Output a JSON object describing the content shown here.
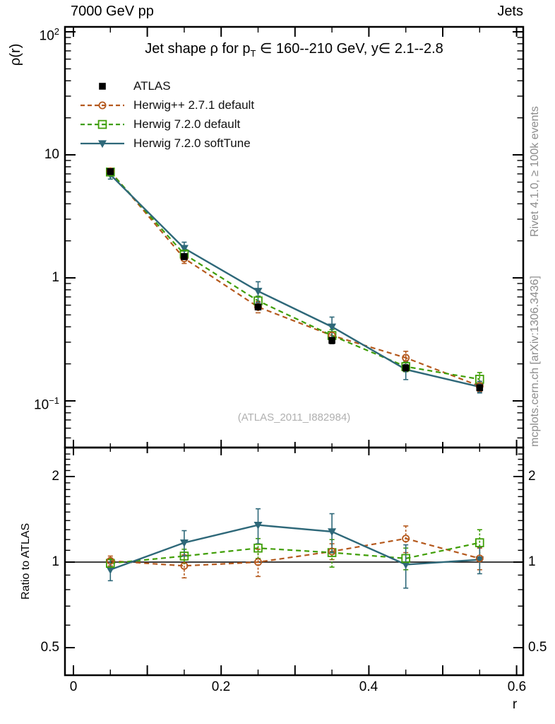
{
  "header": {
    "left": "7000 GeV pp",
    "right": "Jets"
  },
  "main_panel": {
    "ylabel": "ρ(r)",
    "title_parts": {
      "pre": "Jet shape ρ for p",
      "sub": "T",
      "post": " ∈ 160--210 GeV, y∈ 2.1--2.8"
    },
    "watermark": "(ATLAS_2011_I882984)",
    "yticks": [
      {
        "base": "10",
        "exp": "2",
        "value": 100
      },
      {
        "base": "10",
        "exp": "",
        "value": 10
      },
      {
        "base": "1",
        "exp": "",
        "value": 1
      },
      {
        "base": "10",
        "exp": "−1",
        "value": 0.1
      }
    ]
  },
  "ratio_panel": {
    "ylabel": "Ratio to ATLAS",
    "yticks": [
      {
        "label": "2",
        "value": 2
      },
      {
        "label": "1",
        "value": 1
      },
      {
        "label": "0.5",
        "value": 0.5
      }
    ]
  },
  "x_axis": {
    "label": "r",
    "ticks": [
      {
        "label": "0",
        "value": 0
      },
      {
        "label": "0.2",
        "value": 0.2
      },
      {
        "label": "0.4",
        "value": 0.4
      },
      {
        "label": "0.6",
        "value": 0.6
      }
    ]
  },
  "side_notes": {
    "right_top": "Rivet 4.1.0, ≥ 100k events",
    "right_bottom": "mcplots.cern.ch [arXiv:1306.3436]"
  },
  "colors": {
    "atlas": "#000000",
    "herwigpp": "#b5591d",
    "herwig7": "#3f9e06",
    "herwig7soft": "#2e6879",
    "frame": "#000000",
    "gray_text": "#8c8c8c",
    "watermark": "#b0b0b0"
  },
  "chart_data": {
    "type": "line",
    "x": [
      0.05,
      0.15,
      0.25,
      0.35,
      0.45,
      0.55
    ],
    "xlabel": "r",
    "xlim": [
      0,
      0.6
    ],
    "main": {
      "ylabel": "ρ(r)",
      "yscale": "log",
      "ylim": [
        0.042,
        110
      ]
    },
    "ratio": {
      "ylabel": "Ratio to ATLAS",
      "yscale": "log",
      "ylim": [
        0.4,
        2.53
      ],
      "reference": 1
    },
    "series": [
      {
        "name": "ATLAS",
        "marker": "filled-square",
        "line": "none",
        "color_key": "atlas",
        "values": [
          7.3,
          1.49,
          0.58,
          0.31,
          0.185,
          0.128
        ],
        "errors": [
          0.35,
          0.08,
          0.03,
          0.018,
          0.012,
          0.009
        ]
      },
      {
        "name": "Herwig++ 2.7.1 default",
        "marker": "open-circle",
        "line": "dashed",
        "color_key": "herwigpp",
        "values": [
          7.35,
          1.44,
          0.58,
          0.34,
          0.224,
          0.132
        ],
        "errors": [
          0.22,
          0.13,
          0.06,
          0.024,
          0.029,
          0.012
        ],
        "ratio": [
          1.01,
          0.97,
          1.0,
          1.09,
          1.21,
          1.03
        ],
        "ratio_errors": [
          0.04,
          0.09,
          0.11,
          0.07,
          0.13,
          0.09
        ]
      },
      {
        "name": "Herwig 7.2.0 default",
        "marker": "open-square",
        "line": "dashed",
        "color_key": "herwig7",
        "values": [
          7.25,
          1.56,
          0.65,
          0.34,
          0.19,
          0.15
        ],
        "errors": [
          0.29,
          0.09,
          0.06,
          0.04,
          0.017,
          0.02
        ],
        "ratio": [
          0.99,
          1.05,
          1.12,
          1.08,
          1.03,
          1.17
        ],
        "ratio_errors": [
          0.04,
          0.06,
          0.09,
          0.12,
          0.09,
          0.13
        ]
      },
      {
        "name": "Herwig 7.2.0 softTune",
        "marker": "filled-triangle-down",
        "line": "solid",
        "color_key": "herwig7soft",
        "values": [
          6.9,
          1.74,
          0.78,
          0.4,
          0.18,
          0.13
        ],
        "errors": [
          0.55,
          0.21,
          0.15,
          0.08,
          0.031,
          0.014
        ],
        "ratio": [
          0.94,
          1.17,
          1.35,
          1.28,
          0.98,
          1.02
        ],
        "ratio_errors": [
          0.08,
          0.12,
          0.19,
          0.2,
          0.17,
          0.11
        ]
      }
    ]
  }
}
